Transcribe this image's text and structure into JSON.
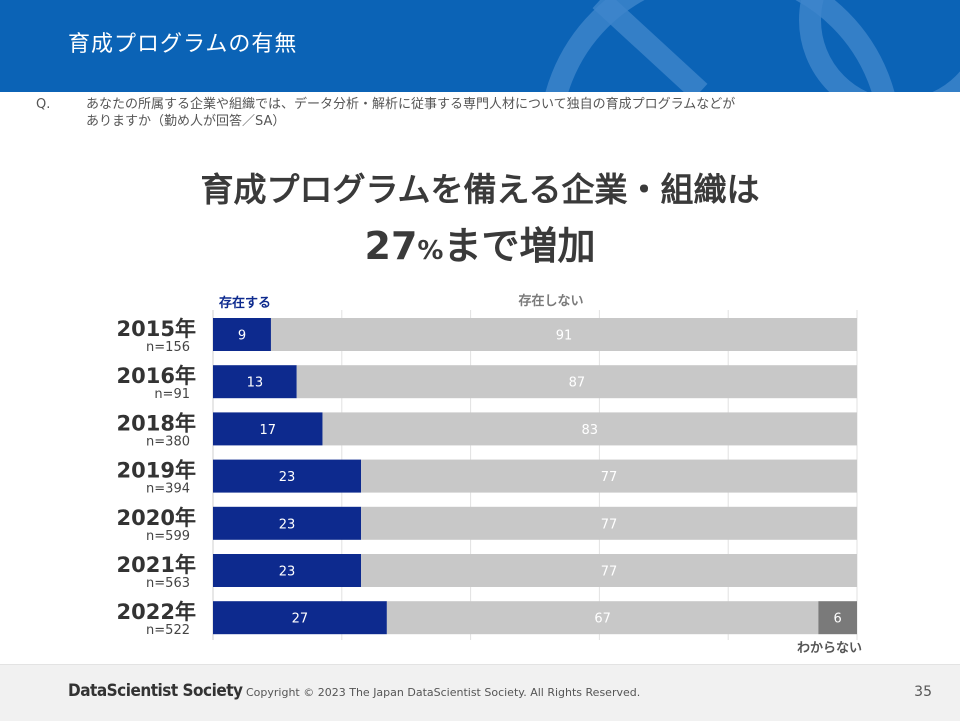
{
  "slide": {
    "title": "育成プログラムの有無",
    "question_label": "Q.",
    "question_line1": "あなたの所属する企業や組織では、データ分析・解析に従事する専門人材について独自の育成プログラムなどが",
    "question_line2": "ありますか（勤め人が回答／SA）",
    "headline_line1": "育成プログラムを備える企業・組織は",
    "headline_num": "27",
    "headline_pct": "%",
    "headline_rest": "まで増加",
    "footer_logo": "DataScientist Society",
    "footer_copyright": "Copyright © 2023  The Japan DataScientist Society. All Rights Reserved.",
    "page_number": "35"
  },
  "colors": {
    "header_bg": "#0b63b6",
    "exists": "#0d2a8e",
    "not_exists": "#c8c8c8",
    "unknown": "#7a7a7a",
    "exists_label": "#0d2a8e",
    "not_exists_label": "#7a7a7a",
    "unknown_label": "#555555"
  },
  "chart_data": {
    "type": "bar",
    "orientation": "horizontal",
    "stacked": true,
    "categories": [
      "2015年",
      "2016年",
      "2018年",
      "2019年",
      "2020年",
      "2021年",
      "2022年"
    ],
    "sample_sizes": [
      "n=156",
      "n=91",
      "n=380",
      "n=394",
      "n=599",
      "n=563",
      "n=522"
    ],
    "series": [
      {
        "name": "存在する",
        "values": [
          9,
          13,
          17,
          23,
          23,
          23,
          27
        ]
      },
      {
        "name": "存在しない",
        "values": [
          91,
          87,
          83,
          77,
          77,
          77,
          67
        ]
      },
      {
        "name": "わからない",
        "values": [
          0,
          0,
          0,
          0,
          0,
          0,
          6
        ]
      }
    ],
    "xlim": [
      0,
      100
    ],
    "grid": true,
    "legend": "series labels above and below the bars"
  }
}
